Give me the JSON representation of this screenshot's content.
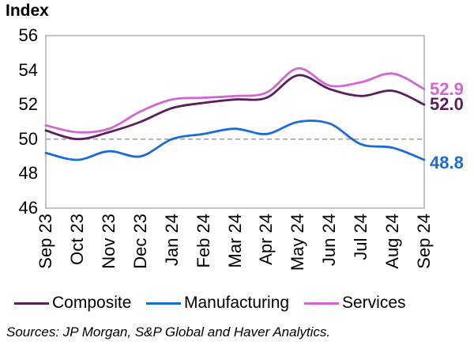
{
  "title": "Index",
  "source_note": "Sources: JP Morgan, S&P Global and Haver Analytics.",
  "colors": {
    "composite": "#5A1E5E",
    "manufacturing": "#1A6BD3",
    "services": "#D364D6",
    "reference_line": "#A3A3A3",
    "plot_border": "#AFAFAF"
  },
  "chart_data": {
    "type": "line",
    "title": "Index",
    "x": [
      "Sep 23",
      "Oct 23",
      "Nov 23",
      "Dec 23",
      "Jan 24",
      "Feb 24",
      "Mar 24",
      "Apr 24",
      "May 24",
      "Jun 24",
      "Jul 24",
      "Aug 24",
      "Sep 24"
    ],
    "series": [
      {
        "name": "Composite",
        "color_key": "composite",
        "end_label": "52.0",
        "values": [
          50.5,
          50.0,
          50.4,
          51.0,
          51.8,
          52.1,
          52.3,
          52.4,
          53.7,
          52.9,
          52.5,
          52.8,
          52.0
        ]
      },
      {
        "name": "Manufacturing",
        "color_key": "manufacturing",
        "end_label": "48.8",
        "values": [
          49.2,
          48.8,
          49.3,
          49.0,
          50.0,
          50.3,
          50.6,
          50.3,
          51.0,
          50.9,
          49.7,
          49.5,
          48.8
        ]
      },
      {
        "name": "Services",
        "color_key": "services",
        "end_label": "52.9",
        "values": [
          50.8,
          50.4,
          50.6,
          51.6,
          52.3,
          52.4,
          52.5,
          52.7,
          54.1,
          53.1,
          53.3,
          53.8,
          52.9
        ]
      }
    ],
    "ylim": [
      46,
      56
    ],
    "y_ticks": [
      56,
      54,
      52,
      50,
      48,
      46
    ],
    "reference_line": 50,
    "smoothed": true,
    "grid": false,
    "legend_position": "bottom"
  }
}
